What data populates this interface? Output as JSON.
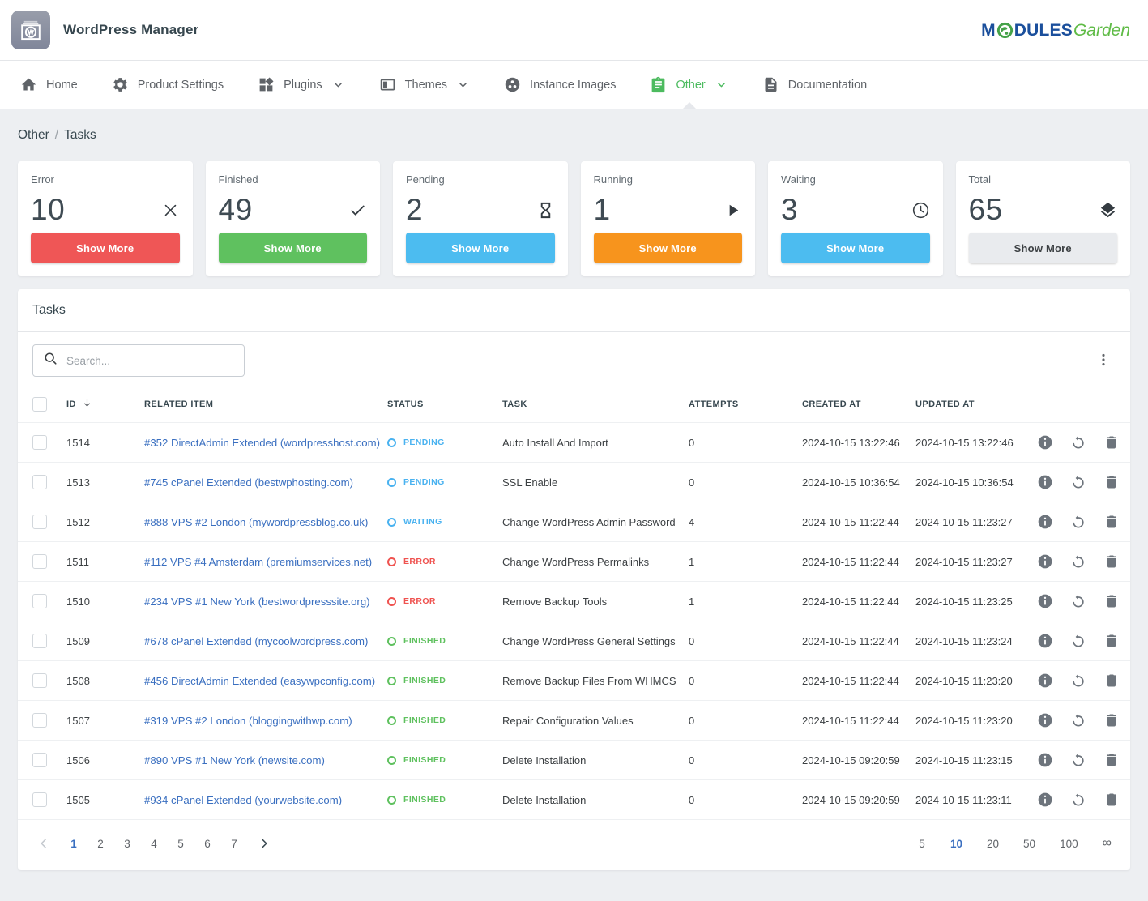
{
  "header": {
    "title": "WordPress Manager",
    "logo": {
      "part_m": "M",
      "part_dules": "DULES",
      "part_garden": "Garden"
    }
  },
  "nav": {
    "items": [
      {
        "label": "Home",
        "icon": "home",
        "dropdown": false,
        "active": false
      },
      {
        "label": "Product Settings",
        "icon": "gear",
        "dropdown": false,
        "active": false
      },
      {
        "label": "Plugins",
        "icon": "plugins",
        "dropdown": true,
        "active": false
      },
      {
        "label": "Themes",
        "icon": "themes",
        "dropdown": true,
        "active": false
      },
      {
        "label": "Instance Images",
        "icon": "instance-images",
        "dropdown": false,
        "active": false
      },
      {
        "label": "Other",
        "icon": "clipboard",
        "dropdown": true,
        "active": true
      },
      {
        "label": "Documentation",
        "icon": "document",
        "dropdown": false,
        "active": false
      }
    ],
    "active_color": "#4cbb5f"
  },
  "breadcrumb": {
    "section": "Other",
    "separator": "/",
    "page": "Tasks"
  },
  "stats": [
    {
      "label": "Error",
      "value": "10",
      "icon": "close",
      "button_label": "Show More",
      "button_color": "#ef5656",
      "button_text_color": "#ffffff"
    },
    {
      "label": "Finished",
      "value": "49",
      "icon": "check",
      "button_label": "Show More",
      "button_color": "#5fc15f",
      "button_text_color": "#ffffff"
    },
    {
      "label": "Pending",
      "value": "2",
      "icon": "hourglass",
      "button_label": "Show More",
      "button_color": "#4cbcf0",
      "button_text_color": "#ffffff"
    },
    {
      "label": "Running",
      "value": "1",
      "icon": "play",
      "button_label": "Show More",
      "button_color": "#f7941d",
      "button_text_color": "#ffffff"
    },
    {
      "label": "Waiting",
      "value": "3",
      "icon": "clock",
      "button_label": "Show More",
      "button_color": "#4cbcf0",
      "button_text_color": "#ffffff"
    },
    {
      "label": "Total",
      "value": "65",
      "icon": "layers",
      "button_label": "Show More",
      "button_color": "#e9ebee",
      "button_text_color": "#3c4043"
    }
  ],
  "panel": {
    "title": "Tasks",
    "search_placeholder": "Search...",
    "search_value": "",
    "search_icon": "search",
    "menu_icon": "kebab"
  },
  "table": {
    "headers": {
      "id": "ID",
      "related": "RELATED ITEM",
      "status": "STATUS",
      "task": "TASK",
      "attempts": "ATTEMPTS",
      "created": "CREATED AT",
      "updated": "UPDATED AT"
    },
    "sort": {
      "column": "ID",
      "direction": "descending",
      "icon": "arrow-down"
    },
    "status_colors": {
      "PENDING": "#49b2f0",
      "WAITING": "#49b2f0",
      "ERROR": "#ef5350",
      "FINISHED": "#5fc15f"
    },
    "row_actions": [
      "info",
      "retry",
      "delete"
    ],
    "rows": [
      {
        "id": "1514",
        "related": "#352 DirectAdmin Extended (wordpresshost.com)",
        "status": "PENDING",
        "task": "Auto Install And Import",
        "attempts": "0",
        "created": "2024-10-15 13:22:46",
        "updated": "2024-10-15 13:22:46"
      },
      {
        "id": "1513",
        "related": "#745 cPanel Extended (bestwphosting.com)",
        "status": "PENDING",
        "task": "SSL Enable",
        "attempts": "0",
        "created": "2024-10-15 10:36:54",
        "updated": "2024-10-15 10:36:54"
      },
      {
        "id": "1512",
        "related": "#888 VPS #2 London (mywordpressblog.co.uk)",
        "status": "WAITING",
        "task": "Change WordPress Admin Password",
        "attempts": "4",
        "created": "2024-10-15 11:22:44",
        "updated": "2024-10-15 11:23:27"
      },
      {
        "id": "1511",
        "related": "#112 VPS #4 Amsterdam (premiumservices.net)",
        "status": "ERROR",
        "task": "Change WordPress Permalinks",
        "attempts": "1",
        "created": "2024-10-15 11:22:44",
        "updated": "2024-10-15 11:23:27"
      },
      {
        "id": "1510",
        "related": "#234 VPS #1 New York (bestwordpresssite.org)",
        "status": "ERROR",
        "task": "Remove Backup Tools",
        "attempts": "1",
        "created": "2024-10-15 11:22:44",
        "updated": "2024-10-15 11:23:25"
      },
      {
        "id": "1509",
        "related": "#678 cPanel Extended (mycoolwordpress.com)",
        "status": "FINISHED",
        "task": "Change WordPress General Settings",
        "attempts": "0",
        "created": "2024-10-15 11:22:44",
        "updated": "2024-10-15 11:23:24"
      },
      {
        "id": "1508",
        "related": "#456 DirectAdmin Extended (easywpconfig.com)",
        "status": "FINISHED",
        "task": "Remove Backup Files From WHMCS",
        "attempts": "0",
        "created": "2024-10-15 11:22:44",
        "updated": "2024-10-15 11:23:20"
      },
      {
        "id": "1507",
        "related": "#319 VPS #2 London (bloggingwithwp.com)",
        "status": "FINISHED",
        "task": "Repair Configuration Values",
        "attempts": "0",
        "created": "2024-10-15 11:22:44",
        "updated": "2024-10-15 11:23:20"
      },
      {
        "id": "1506",
        "related": "#890 VPS #1 New York (newsite.com)",
        "status": "FINISHED",
        "task": "Delete Installation",
        "attempts": "0",
        "created": "2024-10-15 09:20:59",
        "updated": "2024-10-15 11:23:15"
      },
      {
        "id": "1505",
        "related": "#934 cPanel Extended (yourwebsite.com)",
        "status": "FINISHED",
        "task": "Delete Installation",
        "attempts": "0",
        "created": "2024-10-15 09:20:59",
        "updated": "2024-10-15 11:23:11"
      }
    ]
  },
  "pagination": {
    "prev_enabled": false,
    "pages": [
      "1",
      "2",
      "3",
      "4",
      "5",
      "6",
      "7"
    ],
    "active_page": "1",
    "next_enabled": true,
    "page_sizes": [
      "5",
      "10",
      "20",
      "50",
      "100"
    ],
    "active_size": "10",
    "infinite_label": "∞"
  }
}
